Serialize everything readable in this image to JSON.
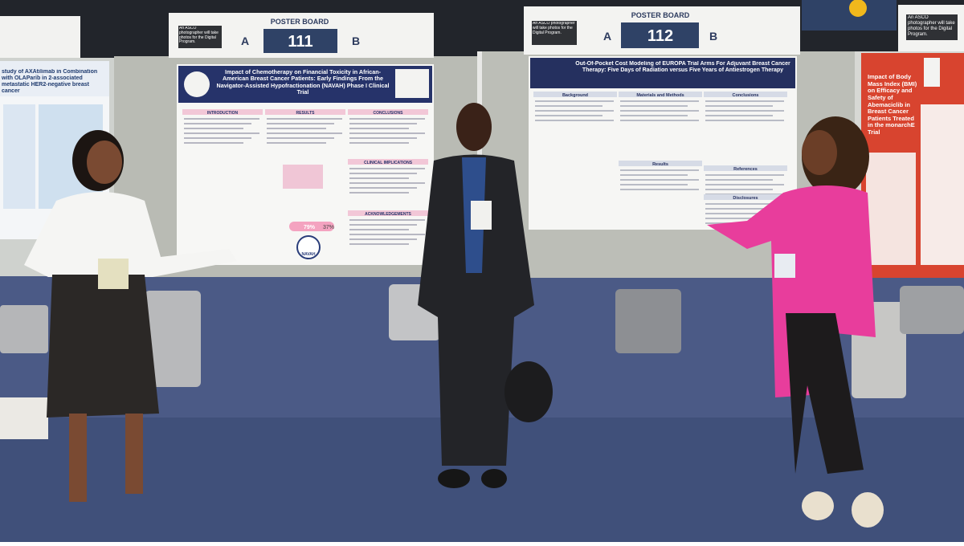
{
  "signs": [
    {
      "heading": "POSTER BOARD",
      "left": "A",
      "number": "111",
      "right": "B",
      "notice": "An ASCO photographer will take photos for the Digital Program."
    },
    {
      "heading": "POSTER BOARD",
      "left": "A",
      "number": "112",
      "right": "B",
      "notice": "An ASCO photographer will take photos for the Digital Program."
    },
    {
      "notice": "An ASCO photographer will take photos for the Digital Program."
    }
  ],
  "posters": [
    {
      "title": "study of AXAtilimab in Combination with OLAParib in 2-associated metastatic HER2-negative breast cancer"
    },
    {
      "title": "Impact of Chemotherapy on Financial Toxicity in African-American Breast Cancer Patients: Early Findings From the Navigator-Assisted Hypofractionation (NAVAH) Phase I Clinical Trial",
      "sections": [
        "INTRODUCTION",
        "RESULTS",
        "CONCLUSIONS",
        "CLINICAL IMPLICATIONS",
        "ACKNOWLEDGEMENTS"
      ],
      "stats": [
        "79%",
        "37%"
      ],
      "logo": "NAVAH"
    },
    {
      "title": "Out-Of-Pocket Cost Modeling of EUROPA Trial Arms For Adjuvant Breast Cancer Therapy: Five Days of Radiation versus Five Years of Antiestrogen Therapy",
      "sections": [
        "Background",
        "Materials and Methods",
        "Conclusions",
        "Results",
        "References",
        "Disclosures"
      ]
    },
    {
      "title": "Impact of Body Mass Index (BMI) on Efficacy and Safety of Abemaciclib in Breast Cancer Patients Treated in the monarchE Trial"
    }
  ]
}
